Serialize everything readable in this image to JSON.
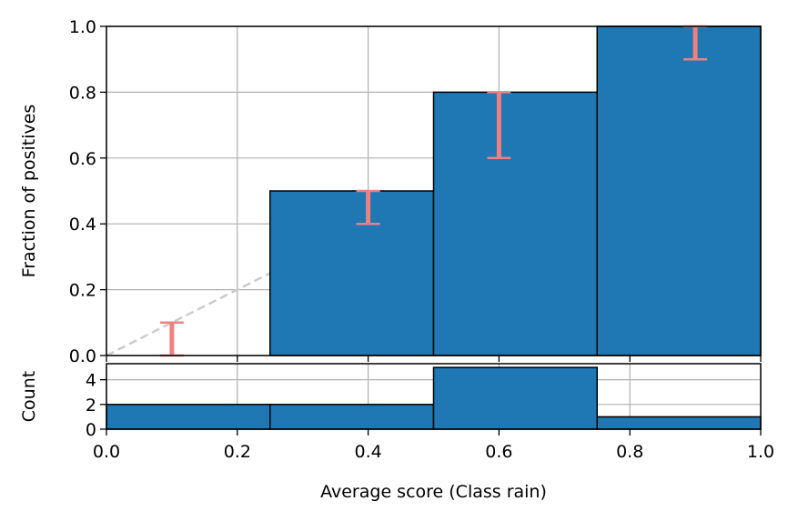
{
  "chart_data": [
    {
      "type": "bar",
      "panel": "top",
      "ylabel": "Fraction of positives",
      "bin_edges": [
        0.0,
        0.25,
        0.5,
        0.75,
        1.0
      ],
      "values": [
        0.0,
        0.5,
        0.8,
        1.0
      ],
      "error_bars": [
        {
          "x": 0.1,
          "low": 0.0,
          "high": 0.1
        },
        {
          "x": 0.4,
          "low": 0.4,
          "high": 0.5
        },
        {
          "x": 0.6,
          "low": 0.6,
          "high": 0.8
        },
        {
          "x": 0.9,
          "low": 0.9,
          "high": 1.0
        }
      ],
      "diagonal": {
        "from": [
          0,
          0
        ],
        "to": [
          1,
          1
        ],
        "style": "dashed"
      },
      "xlim": [
        0,
        1
      ],
      "ylim": [
        0,
        1
      ],
      "yticks": [
        "0.0",
        "0.2",
        "0.4",
        "0.6",
        "0.8",
        "1.0"
      ],
      "grid": true,
      "colors": {
        "bar": "#1f77b4",
        "error": "#f08080",
        "diagonal": "#cccccc"
      }
    },
    {
      "type": "bar",
      "panel": "bottom",
      "xlabel": "Average score (Class rain)",
      "ylabel": "Count",
      "bin_edges": [
        0.0,
        0.25,
        0.5,
        0.75,
        1.0
      ],
      "values": [
        2,
        2,
        5,
        1
      ],
      "xlim": [
        0,
        1
      ],
      "ylim": [
        0,
        5.3
      ],
      "xticks": [
        "0.0",
        "0.2",
        "0.4",
        "0.6",
        "0.8",
        "1.0"
      ],
      "yticks": [
        "0",
        "2",
        "4"
      ],
      "grid": true,
      "colors": {
        "bar": "#1f77b4"
      }
    }
  ]
}
